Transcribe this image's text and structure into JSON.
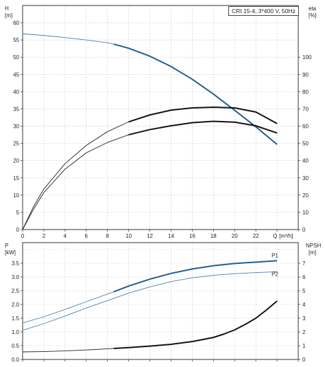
{
  "chart_data": [
    {
      "type": "line",
      "title": "CRI 15-4, 3*400 V, 50Hz",
      "xlabel": "Q [m³/h]",
      "x_axis_name": "Q",
      "x_axis_unit": "[m³/h]",
      "x_ticks": [
        0,
        2,
        4,
        6,
        8,
        10,
        12,
        14,
        16,
        18,
        20,
        22
      ],
      "xlim": [
        0,
        26
      ],
      "left_axis": {
        "name": "H",
        "unit": "[m]",
        "ylim": [
          0,
          65
        ],
        "ticks": [
          0,
          5,
          10,
          15,
          20,
          25,
          30,
          35,
          40,
          45,
          50,
          55,
          60
        ]
      },
      "right_axis": {
        "name": "eta",
        "unit": "[%]",
        "ylim": [
          0,
          130
        ],
        "ticks": [
          0,
          10,
          20,
          30,
          40,
          50,
          60,
          70,
          80,
          90,
          100
        ]
      },
      "grid": true,
      "series": [
        {
          "axis": "left",
          "color": "#4a7fae",
          "x": [
            0,
            2,
            4,
            6,
            8,
            8.6,
            10,
            12,
            14,
            16,
            18,
            20,
            22,
            24
          ],
          "y": [
            56.8,
            56.3,
            55.7,
            55.0,
            54.2,
            53.8,
            52.6,
            50.3,
            47.3,
            43.6,
            39.3,
            34.6,
            29.8,
            24.7
          ]
        },
        {
          "axis": "right",
          "color": "#222222",
          "x": [
            0,
            1,
            2,
            4,
            6,
            8,
            10,
            12,
            14,
            16,
            18,
            20,
            22,
            24
          ],
          "y": [
            0,
            13.0,
            23.5,
            38.2,
            48.8,
            56.8,
            62.5,
            66.5,
            69.3,
            70.6,
            71.0,
            70.6,
            68.2,
            61.5
          ]
        },
        {
          "axis": "right",
          "color": "#222222",
          "x": [
            0,
            1,
            2,
            4,
            6,
            8,
            10,
            12,
            14,
            16,
            18,
            20,
            22,
            24
          ],
          "y": [
            0,
            11.5,
            21.5,
            35.0,
            44.5,
            50.5,
            55.0,
            58.0,
            60.2,
            62.0,
            62.8,
            62.3,
            60.2,
            56.0
          ]
        }
      ]
    },
    {
      "type": "line",
      "xlim": [
        0,
        26
      ],
      "left_axis": {
        "name": "P",
        "unit": "[kW]",
        "ylim": [
          0,
          4.25
        ],
        "ticks": [
          0.0,
          0.5,
          1.0,
          1.5,
          2.0,
          2.5,
          3.0,
          3.5
        ]
      },
      "right_axis": {
        "name": "NPSH",
        "unit": "[m]",
        "ylim": [
          0,
          8.5
        ],
        "ticks": [
          0,
          1,
          2,
          3,
          4,
          5,
          6,
          7
        ]
      },
      "grid": true,
      "series": [
        {
          "name": "P1",
          "axis": "left",
          "color": "#4a7fae",
          "x": [
            0,
            2,
            4,
            6,
            8,
            8.6,
            10,
            12,
            14,
            16,
            18,
            20,
            22,
            24
          ],
          "y": [
            1.33,
            1.55,
            1.82,
            2.1,
            2.38,
            2.46,
            2.67,
            2.92,
            3.13,
            3.29,
            3.41,
            3.49,
            3.54,
            3.59
          ]
        },
        {
          "name": "P2",
          "axis": "left",
          "color": "#4a7fae",
          "x": [
            0,
            2,
            4,
            6,
            8,
            10,
            12,
            14,
            16,
            18,
            20,
            22,
            24
          ],
          "y": [
            1.06,
            1.3,
            1.58,
            1.87,
            2.14,
            2.41,
            2.64,
            2.83,
            2.97,
            3.06,
            3.12,
            3.16,
            3.19
          ]
        },
        {
          "axis": "right",
          "color": "#222222",
          "x": [
            0,
            2,
            4,
            6,
            8,
            8.6,
            10,
            12,
            14,
            16,
            18,
            19,
            20,
            21,
            22,
            23,
            24
          ],
          "y": [
            0.55,
            0.57,
            0.62,
            0.69,
            0.77,
            0.8,
            0.86,
            0.97,
            1.1,
            1.3,
            1.6,
            1.85,
            2.15,
            2.55,
            3.0,
            3.6,
            4.25
          ]
        }
      ]
    }
  ]
}
